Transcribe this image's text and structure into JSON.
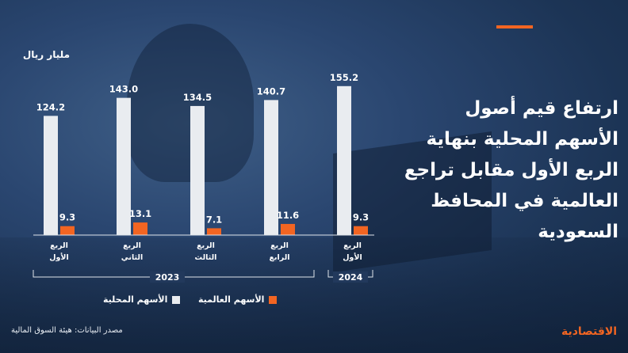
{
  "title_lines": [
    "ارتفاع قيم أصول",
    "الأسهم المحلية بنهاية",
    "الربع الأول مقابل تراجع",
    "العالمية في المحافظ",
    "السعودية"
  ],
  "unit": "مليار ريال",
  "legend": {
    "domestic": "الأسهم المحلية",
    "global": "الأسهم العالمية"
  },
  "source": "مصدر البيانات: هيئة السوق المالية",
  "brand": "الاقتصادية",
  "colors": {
    "domestic": "#e9ecf0",
    "global": "#f26522",
    "accent": "#f26522"
  },
  "chart_data": {
    "type": "bar",
    "categories": [
      [
        "الربع",
        "الأول"
      ],
      [
        "الربع",
        "الثاني"
      ],
      [
        "الربع",
        "الثالث"
      ],
      [
        "الربع",
        "الرابع"
      ],
      [
        "الربع",
        "الأول"
      ]
    ],
    "years": [
      {
        "label": "2023",
        "span": [
          0,
          3
        ]
      },
      {
        "label": "2024",
        "span": [
          4,
          4
        ]
      }
    ],
    "series": [
      {
        "name": "الأسهم المحلية",
        "values": [
          124.2,
          143.0,
          134.5,
          140.7,
          155.2
        ]
      },
      {
        "name": "الأسهم العالمية",
        "values": [
          9.3,
          13.1,
          7.1,
          11.6,
          9.3
        ]
      }
    ],
    "ylim": [
      0,
      160
    ]
  }
}
